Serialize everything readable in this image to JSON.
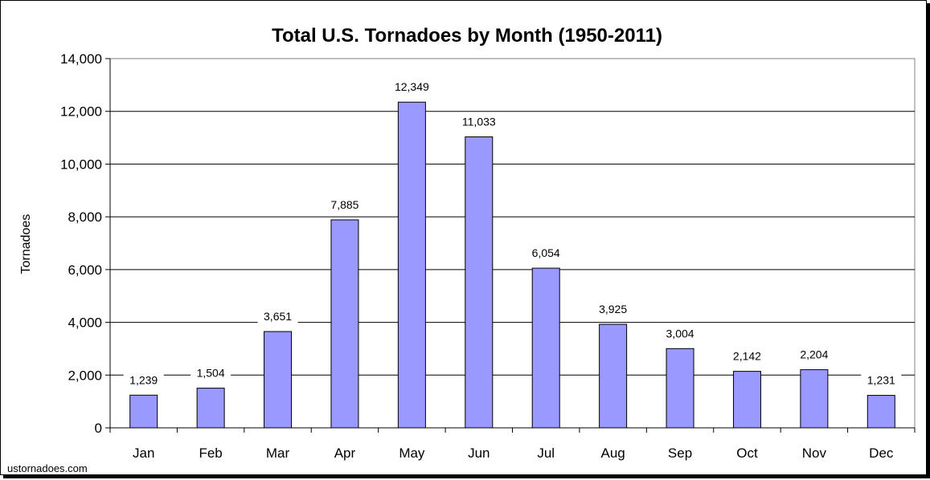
{
  "source_label": "ustornadoes.com",
  "chart_data": {
    "type": "bar",
    "title": "Total U.S. Tornadoes by Month (1950-2011)",
    "xlabel": "",
    "ylabel": "Tornadoes",
    "categories": [
      "Jan",
      "Feb",
      "Mar",
      "Apr",
      "May",
      "Jun",
      "Jul",
      "Aug",
      "Sep",
      "Oct",
      "Nov",
      "Dec"
    ],
    "values": [
      1239,
      1504,
      3651,
      7885,
      12349,
      11033,
      6054,
      3925,
      3004,
      2142,
      2204,
      1231
    ],
    "data_labels": [
      "1,239",
      "1,504",
      "3,651",
      "7,885",
      "12,349",
      "11,033",
      "6,054",
      "3,925",
      "3,004",
      "2,142",
      "2,204",
      "1,231"
    ],
    "ylim": [
      0,
      14000
    ],
    "yticks": [
      0,
      2000,
      4000,
      6000,
      8000,
      10000,
      12000,
      14000
    ],
    "ytick_labels": [
      "0",
      "2,000",
      "4,000",
      "6,000",
      "8,000",
      "10,000",
      "12,000",
      "14,000"
    ],
    "grid": true,
    "legend": "none",
    "colors": {
      "bar_fill": "#9999ff",
      "bar_stroke": "#000000",
      "gridline": "#000000"
    }
  }
}
